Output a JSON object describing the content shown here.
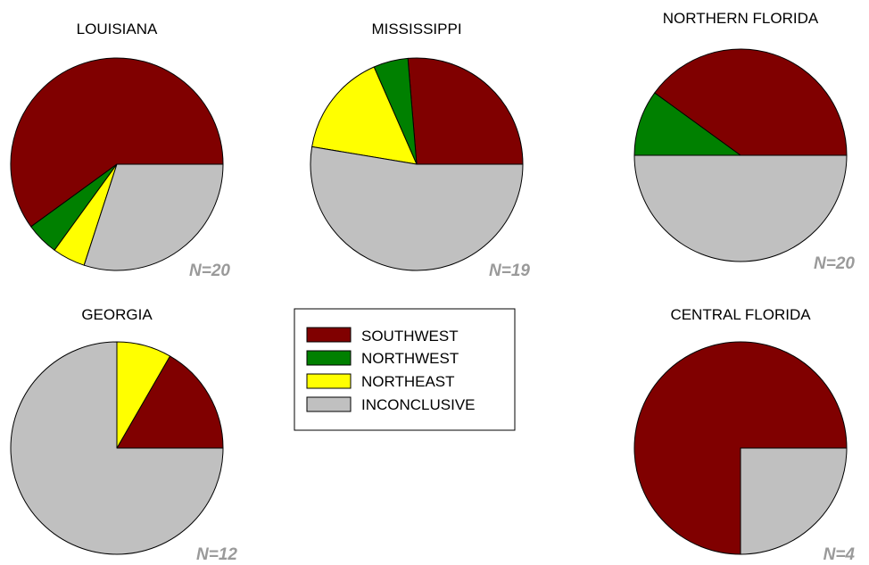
{
  "colors": {
    "southwest": "#800000",
    "northwest": "#008000",
    "northeast": "#ffff00",
    "inconclusive": "#c0c0c0"
  },
  "legend": {
    "placement": "center",
    "items": [
      {
        "key": "southwest",
        "label": "SOUTHWEST"
      },
      {
        "key": "northwest",
        "label": "NORTHWEST"
      },
      {
        "key": "northeast",
        "label": "NORTHEAST"
      },
      {
        "key": "inconclusive",
        "label": "INCONCLUSIVE"
      }
    ]
  },
  "chart_data": [
    {
      "type": "pie",
      "title": "LOUISIANA",
      "n_label": "N=20",
      "slices": [
        {
          "key": "southwest",
          "value": 12
        },
        {
          "key": "northwest",
          "value": 1
        },
        {
          "key": "northeast",
          "value": 1
        },
        {
          "key": "inconclusive",
          "value": 6
        }
      ]
    },
    {
      "type": "pie",
      "title": "MISSISSIPPI",
      "n_label": "N=19",
      "slices": [
        {
          "key": "southwest",
          "value": 5
        },
        {
          "key": "northwest",
          "value": 1
        },
        {
          "key": "northeast",
          "value": 3
        },
        {
          "key": "inconclusive",
          "value": 10
        }
      ]
    },
    {
      "type": "pie",
      "title": "NORTHERN FLORIDA",
      "n_label": "N=20",
      "slices": [
        {
          "key": "southwest",
          "value": 8
        },
        {
          "key": "northwest",
          "value": 2
        },
        {
          "key": "northeast",
          "value": 0
        },
        {
          "key": "inconclusive",
          "value": 10
        }
      ]
    },
    {
      "type": "pie",
      "title": "GEORGIA",
      "n_label": "N=12",
      "slices": [
        {
          "key": "southwest",
          "value": 2
        },
        {
          "key": "northwest",
          "value": 0
        },
        {
          "key": "northeast",
          "value": 1
        },
        {
          "key": "inconclusive",
          "value": 9
        }
      ]
    },
    {
      "type": "pie",
      "title": "CENTRAL FLORIDA",
      "n_label": "N=4",
      "slices": [
        {
          "key": "southwest",
          "value": 3
        },
        {
          "key": "northwest",
          "value": 0
        },
        {
          "key": "northeast",
          "value": 0
        },
        {
          "key": "inconclusive",
          "value": 1
        }
      ]
    }
  ]
}
